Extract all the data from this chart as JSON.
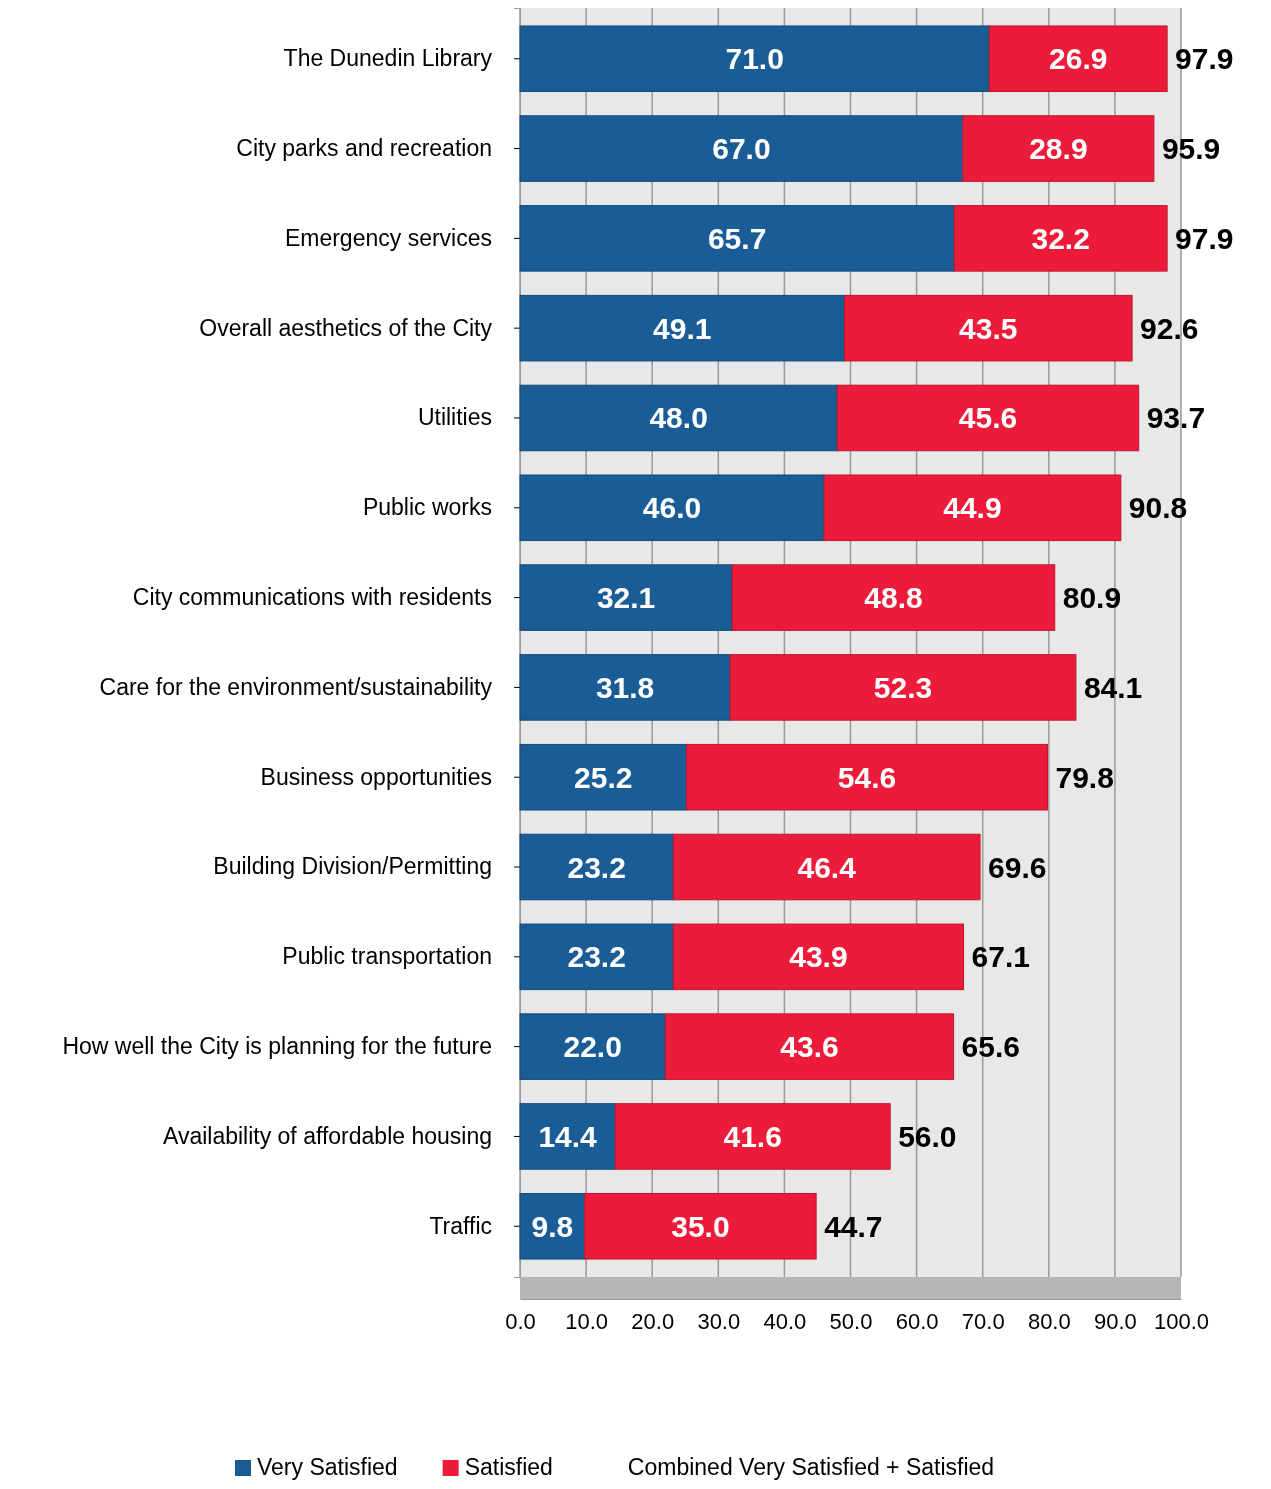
{
  "chart_data": {
    "type": "bar",
    "orientation": "horizontal",
    "stacked": true,
    "categories": [
      "The Dunedin Library",
      "City parks and recreation",
      "Emergency services",
      "Overall aesthetics of the City",
      "Utilities",
      "Public works",
      "City communications with residents",
      "Care for the environment/sustainability",
      "Business opportunities",
      "Building Division/Permitting",
      "Public transportation",
      "How well the City is planning for the future",
      "Availability of affordable housing",
      "Traffic"
    ],
    "series": [
      {
        "name": "Very Satisfied",
        "color": "#1a5c96",
        "values": [
          71.0,
          67.0,
          65.7,
          49.1,
          48.0,
          46.0,
          32.1,
          31.8,
          25.2,
          23.2,
          23.2,
          22.0,
          14.4,
          9.8
        ],
        "value_labels": [
          "71.0",
          "67.0",
          "65.7",
          "49.1",
          "48.0",
          "46.0",
          "32.1",
          "31.8",
          "25.2",
          "23.2",
          "23.2",
          "22.0",
          "14.4",
          "9.8"
        ]
      },
      {
        "name": "Satisfied",
        "color": "#ed1b3a",
        "values": [
          26.9,
          28.9,
          32.2,
          43.5,
          45.6,
          44.9,
          48.8,
          52.3,
          54.6,
          46.4,
          43.9,
          43.6,
          41.6,
          35.0
        ],
        "value_labels": [
          "26.9",
          "28.9",
          "32.2",
          "43.5",
          "45.6",
          "44.9",
          "48.8",
          "52.3",
          "54.6",
          "46.4",
          "43.9",
          "43.6",
          "41.6",
          "35.0"
        ]
      }
    ],
    "totals": [
      "97.9",
      "95.9",
      "97.9",
      "92.6",
      "93.7",
      "90.8",
      "80.9",
      "84.1",
      "79.8",
      "69.6",
      "67.1",
      "65.6",
      "56.0",
      "44.7"
    ],
    "xlim": [
      0,
      100
    ],
    "xticks": [
      {
        "value": 0,
        "label": "0.0"
      },
      {
        "value": 10,
        "label": "10.0"
      },
      {
        "value": 20,
        "label": "20.0"
      },
      {
        "value": 30,
        "label": "30.0"
      },
      {
        "value": 40,
        "label": "40.0"
      },
      {
        "value": 50,
        "label": "50.0"
      },
      {
        "value": 60,
        "label": "60.0"
      },
      {
        "value": 70,
        "label": "70.0"
      },
      {
        "value": 80,
        "label": "80.0"
      },
      {
        "value": 90,
        "label": "90.0"
      },
      {
        "value": 100,
        "label": "100.0"
      }
    ],
    "grid": "x",
    "legend": "bottom",
    "annotations": [
      "Combined Very Satisfied + Satisfied"
    ]
  }
}
